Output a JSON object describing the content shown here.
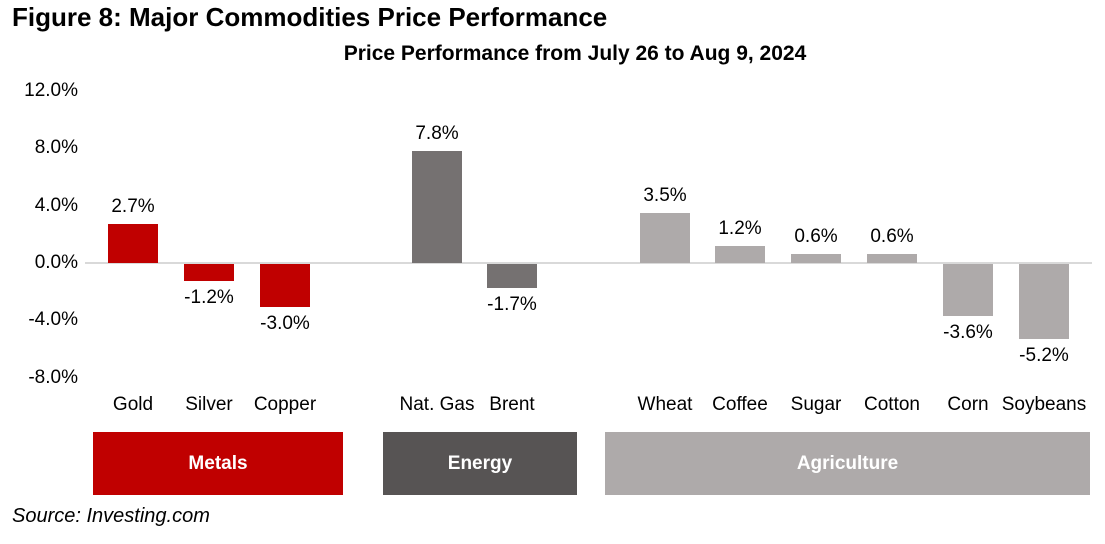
{
  "figure": {
    "title": "Figure 8: Major Commodities Price Performance",
    "source": "Source: Investing.com"
  },
  "chart_data": {
    "type": "bar",
    "title": "Price Performance from July 26 to Aug 9, 2024",
    "categories": [
      "Gold",
      "Silver",
      "Copper",
      "Nat. Gas",
      "Brent",
      "Wheat",
      "Coffee",
      "Sugar",
      "Cotton",
      "Corn",
      "Soybeans"
    ],
    "values": [
      2.7,
      -1.2,
      -3.0,
      7.8,
      -1.7,
      3.5,
      1.2,
      0.6,
      0.6,
      -3.6,
      -5.2
    ],
    "value_labels": [
      "2.7%",
      "-1.2%",
      "-3.0%",
      "7.8%",
      "-1.7%",
      "3.5%",
      "1.2%",
      "0.6%",
      "0.6%",
      "-3.6%",
      "-5.2%"
    ],
    "groups": [
      {
        "label": "Metals",
        "bar_color": "#c00000",
        "box_color": "#c00000",
        "count": 3
      },
      {
        "label": "Energy",
        "bar_color": "#757171",
        "box_color": "#575454",
        "count": 2
      },
      {
        "label": "Agriculture",
        "bar_color": "#aeaaaa",
        "box_color": "#aeaaaa",
        "count": 6
      }
    ],
    "yticks": {
      "values": [
        12,
        8,
        4,
        0,
        -4,
        -8
      ],
      "labels": [
        "12.0%",
        "8.0%",
        "4.0%",
        "0.0%",
        "-4.0%",
        "-8.0%"
      ]
    },
    "ylim": [
      -8,
      12
    ],
    "xlabel": "",
    "ylabel": "",
    "grid": false,
    "legend_position": "bottom",
    "axis_line_color": "#d9d9d9",
    "text_color": "#000000",
    "background_color": "#ffffff"
  }
}
